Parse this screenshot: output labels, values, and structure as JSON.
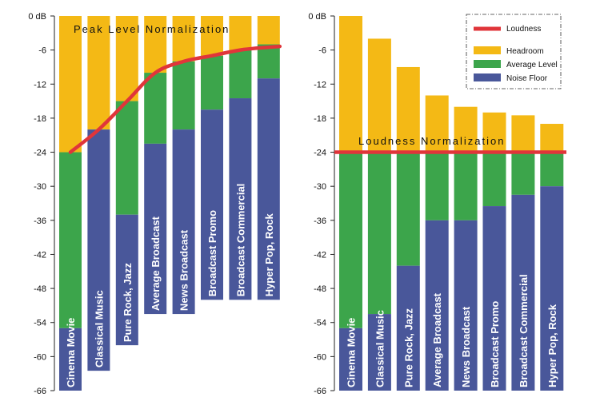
{
  "colors": {
    "headroom": "#F4B915",
    "average": "#3CA54B",
    "noise": "#49579A",
    "loudness": "#E0353A"
  },
  "legend": {
    "loudness": "Loudness",
    "headroom": "Headroom",
    "average": "Average Level",
    "noise": "Noise Floor"
  },
  "chart_data": [
    {
      "type": "bar",
      "title": "Peak Level Normalization",
      "ylim": [
        -66,
        0
      ],
      "yticks": [
        "0 dB",
        "-6",
        "-12",
        "-18",
        "-24",
        "-30",
        "-36",
        "-42",
        "-48",
        "-54",
        "-60",
        "-66"
      ],
      "categories": [
        "Cinema Movie",
        "Classical Music",
        "Pure Rock, Jazz",
        "Average Broadcast",
        "News Broadcast",
        "Broadcast Promo",
        "Broadcast Commercial",
        "Hyper Pop, Rock"
      ],
      "peak": [
        0,
        0,
        0,
        0,
        0,
        0,
        0,
        0
      ],
      "average_level": [
        -24,
        -20,
        -15,
        -10,
        -8,
        -7,
        -6,
        -5
      ],
      "noise_top": [
        -55,
        -20,
        -35,
        -22.5,
        -20,
        -16.5,
        -14.5,
        -11
      ],
      "bottom": [
        -66,
        -62.5,
        -58,
        -52.5,
        -52.5,
        -50,
        -50,
        -50
      ],
      "loudness_curve": [
        -24,
        -20,
        -15,
        -10,
        -8,
        -7,
        -6,
        -5.5
      ]
    },
    {
      "type": "bar",
      "title": "Loudness Normalization",
      "ylim": [
        -66,
        0
      ],
      "yticks": [
        "0 dB",
        "-6",
        "-12",
        "-18",
        "-24",
        "-30",
        "-36",
        "-42",
        "-48",
        "-54",
        "-60",
        "-66"
      ],
      "categories": [
        "Cinema Movie",
        "Classical Music",
        "Pure Rock, Jazz",
        "Average Broadcast",
        "News Broadcast",
        "Broadcast Promo",
        "Broadcast Commercial",
        "Hyper Pop, Rock"
      ],
      "peak": [
        0,
        -4,
        -9,
        -14,
        -16,
        -17,
        -17.5,
        -19
      ],
      "average_level": [
        -24,
        -24,
        -24,
        -24,
        -24,
        -24,
        -24,
        -24
      ],
      "noise_top": [
        -55,
        -52.5,
        -44,
        -36,
        -36,
        -33.5,
        -31.5,
        -30
      ],
      "bottom": [
        -66,
        -66,
        -66,
        -66,
        -66,
        -66,
        -66,
        -66
      ],
      "loudness_line": -24
    }
  ]
}
